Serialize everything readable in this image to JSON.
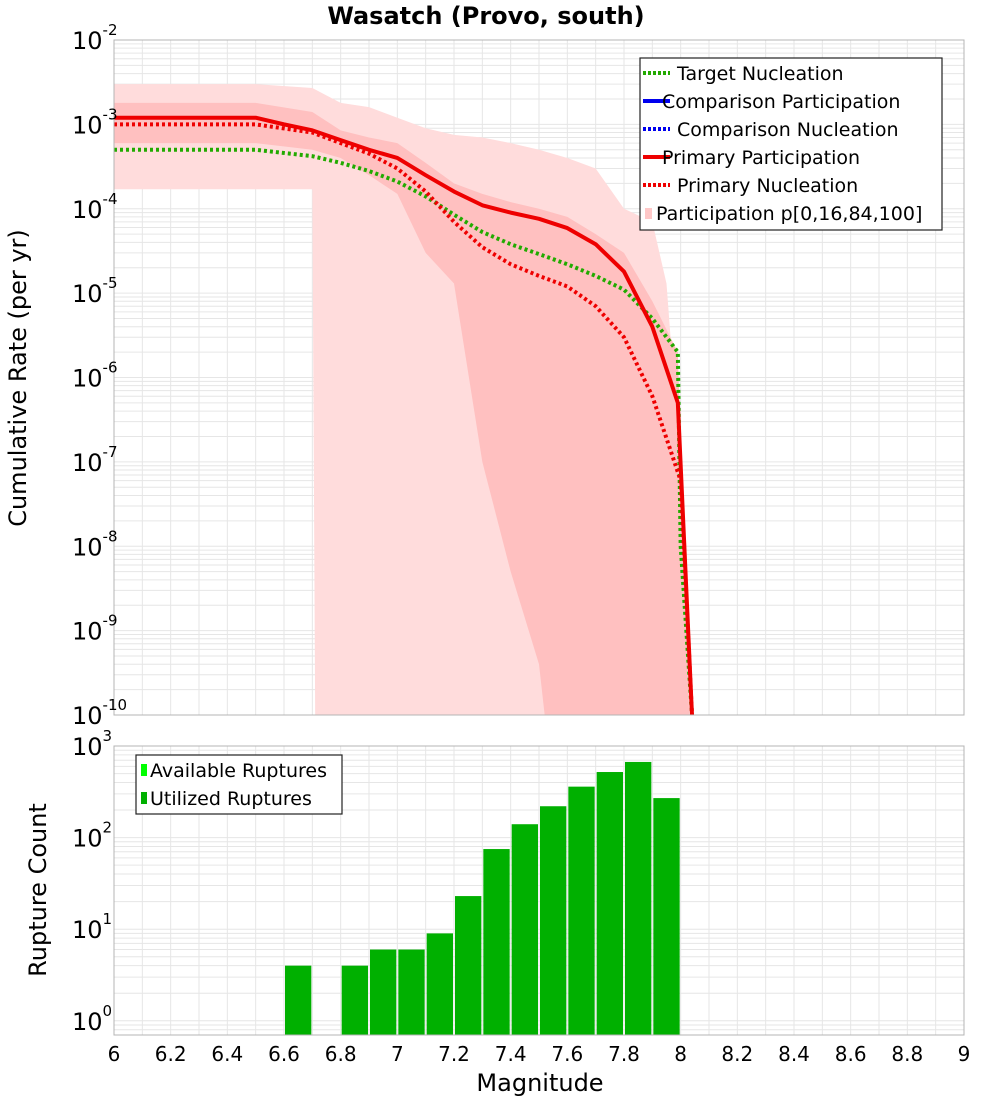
{
  "page_title": "Wasatch (Provo, south)",
  "colors": {
    "target": "#22aa00",
    "comparison": "#0000ee",
    "primary": "#ee0000",
    "band_outer": "#ffdcdc",
    "band_inner": "#ffc0c0",
    "bar_available": "#00ff00",
    "bar_utilized": "#00b000",
    "grid": "#e6e6e6",
    "axis": "#b4b4b4"
  },
  "chart_data": [
    {
      "type": "line",
      "title": "Wasatch (Provo, south)",
      "xlabel": "",
      "ylabel": "Cumulative Rate (per yr)",
      "xlim": [
        6,
        9
      ],
      "ylim": [
        1e-10,
        0.01
      ],
      "yscale": "log",
      "y_tick_labels": [
        {
          "base": "10",
          "exp": "-2",
          "value": 0.01
        },
        {
          "base": "10",
          "exp": "-3",
          "value": 0.001
        },
        {
          "base": "10",
          "exp": "-4",
          "value": 0.0001
        },
        {
          "base": "10",
          "exp": "-5",
          "value": 1e-05
        },
        {
          "base": "10",
          "exp": "-6",
          "value": 1e-06
        },
        {
          "base": "10",
          "exp": "-7",
          "value": 1e-07
        },
        {
          "base": "10",
          "exp": "-8",
          "value": 1e-08
        },
        {
          "base": "10",
          "exp": "-9",
          "value": 1e-09
        },
        {
          "base": "10",
          "exp": "-10",
          "value": 1e-10
        }
      ],
      "legend_position": "top-right",
      "legend": [
        {
          "label": "Target Nucleation",
          "style": "dotted",
          "color_key": "target"
        },
        {
          "label": "Comparison Participation",
          "style": "solid",
          "color_key": "comparison"
        },
        {
          "label": "Comparison Nucleation",
          "style": "dotted",
          "color_key": "comparison"
        },
        {
          "label": "Primary Participation",
          "style": "solid",
          "color_key": "primary"
        },
        {
          "label": "Primary Nucleation",
          "style": "dotted",
          "color_key": "primary"
        },
        {
          "label": "Participation p[0,16,84,100]",
          "style": "band",
          "color_key": "band_outer"
        }
      ],
      "bands": [
        {
          "name": "p0-p100",
          "color_key": "band_outer",
          "upper": [
            [
              6.0,
              0.003
            ],
            [
              6.5,
              0.003
            ],
            [
              6.7,
              0.0027
            ],
            [
              6.8,
              0.0018
            ],
            [
              6.9,
              0.0016
            ],
            [
              7.0,
              0.0012
            ],
            [
              7.1,
              0.0009
            ],
            [
              7.2,
              0.00075
            ],
            [
              7.3,
              0.0007
            ],
            [
              7.4,
              0.0006
            ],
            [
              7.5,
              0.0005
            ],
            [
              7.6,
              0.0004
            ],
            [
              7.7,
              0.0003
            ],
            [
              7.8,
              0.0001
            ],
            [
              7.9,
              7e-05
            ],
            [
              7.95,
              1.3e-05
            ],
            [
              8.02,
              1e-08
            ],
            [
              8.04,
              1e-10
            ]
          ],
          "lower": [
            [
              6.0,
              0.00017
            ],
            [
              6.7,
              0.00017
            ],
            [
              6.71,
              1e-10
            ]
          ]
        },
        {
          "name": "p16-p84",
          "color_key": "band_inner",
          "upper": [
            [
              6.0,
              0.0018
            ],
            [
              6.5,
              0.0018
            ],
            [
              6.7,
              0.0014
            ],
            [
              6.8,
              0.00085
            ],
            [
              6.9,
              0.0007
            ],
            [
              7.0,
              0.0006
            ],
            [
              7.1,
              0.00035
            ],
            [
              7.2,
              0.0002
            ],
            [
              7.3,
              0.00015
            ],
            [
              7.4,
              0.00012
            ],
            [
              7.5,
              0.0001
            ],
            [
              7.6,
              8e-05
            ],
            [
              7.7,
              5e-05
            ],
            [
              7.8,
              3e-05
            ],
            [
              7.9,
              8e-06
            ],
            [
              7.99,
              2e-06
            ],
            [
              8.03,
              1e-10
            ]
          ],
          "lower": [
            [
              6.0,
              0.0006
            ],
            [
              6.5,
              0.0006
            ],
            [
              6.7,
              0.0005
            ],
            [
              6.8,
              0.0004
            ],
            [
              6.9,
              0.00025
            ],
            [
              7.0,
              0.00015
            ],
            [
              7.1,
              3e-05
            ],
            [
              7.2,
              1.3e-05
            ],
            [
              7.3,
              1e-07
            ],
            [
              7.4,
              5e-09
            ],
            [
              7.5,
              4e-10
            ],
            [
              7.52,
              1e-10
            ]
          ]
        }
      ],
      "series": [
        {
          "name": "Target Nucleation",
          "style": "dotted",
          "color_key": "target",
          "x": [
            6.0,
            6.5,
            6.7,
            6.8,
            6.9,
            7.0,
            7.1,
            7.2,
            7.3,
            7.4,
            7.5,
            7.6,
            7.7,
            7.8,
            7.9,
            7.99,
            8.0,
            8.04
          ],
          "y": [
            0.0005,
            0.0005,
            0.00042,
            0.00035,
            0.00028,
            0.00021,
            0.00014,
            8.5e-05,
            5.3e-05,
            3.8e-05,
            2.9e-05,
            2.2e-05,
            1.6e-05,
            1.1e-05,
            5e-06,
            2e-06,
            1e-08,
            1e-10
          ]
        },
        {
          "name": "Primary Participation",
          "style": "solid",
          "color_key": "primary",
          "x": [
            6.0,
            6.5,
            6.6,
            6.7,
            6.8,
            6.9,
            7.0,
            7.1,
            7.2,
            7.3,
            7.4,
            7.5,
            7.6,
            7.7,
            7.8,
            7.9,
            7.99,
            8.04
          ],
          "y": [
            0.0012,
            0.0012,
            0.001,
            0.00085,
            0.00065,
            0.0005,
            0.0004,
            0.00025,
            0.00016,
            0.00011,
            9e-05,
            7.6e-05,
            5.9e-05,
            3.8e-05,
            1.8e-05,
            4e-06,
            5e-07,
            1e-10
          ]
        },
        {
          "name": "Primary Nucleation",
          "style": "dotted",
          "color_key": "primary",
          "x": [
            6.0,
            6.5,
            6.7,
            6.8,
            6.9,
            7.0,
            7.1,
            7.2,
            7.3,
            7.4,
            7.5,
            7.6,
            7.7,
            7.8,
            7.9,
            8.0,
            8.04
          ],
          "y": [
            0.001,
            0.001,
            0.0008,
            0.0006,
            0.00045,
            0.0003,
            0.00016,
            7e-05,
            3.5e-05,
            2.2e-05,
            1.6e-05,
            1.2e-05,
            7e-06,
            3e-06,
            6e-07,
            6e-08,
            1e-10
          ]
        }
      ]
    },
    {
      "type": "bar",
      "xlabel": "Magnitude",
      "ylabel": "Rupture Count",
      "xlim": [
        6,
        9
      ],
      "ylim": [
        0.7,
        1000
      ],
      "yscale": "log",
      "x_ticks": [
        "6",
        "6.2",
        "6.4",
        "6.6",
        "6.8",
        "7",
        "7.2",
        "7.4",
        "7.6",
        "7.8",
        "8",
        "8.2",
        "8.4",
        "8.6",
        "8.8",
        "9"
      ],
      "y_tick_labels": [
        {
          "base": "10",
          "exp": "3",
          "value": 1000
        },
        {
          "base": "10",
          "exp": "2",
          "value": 100
        },
        {
          "base": "10",
          "exp": "1",
          "value": 10
        },
        {
          "base": "10",
          "exp": "0",
          "value": 1
        }
      ],
      "bar_width": 0.1,
      "legend_position": "top-left",
      "legend": [
        {
          "label": "Available Ruptures",
          "color_key": "bar_available"
        },
        {
          "label": "Utilized Ruptures",
          "color_key": "bar_utilized"
        }
      ],
      "series": [
        {
          "name": "Utilized Ruptures",
          "color_key": "bar_utilized",
          "x": [
            6.65,
            6.85,
            6.95,
            7.05,
            7.15,
            7.25,
            7.35,
            7.45,
            7.55,
            7.65,
            7.75,
            7.85,
            7.95
          ],
          "values": [
            4,
            4,
            6,
            6,
            9,
            23,
            75,
            140,
            220,
            360,
            520,
            670,
            270
          ]
        }
      ]
    }
  ]
}
